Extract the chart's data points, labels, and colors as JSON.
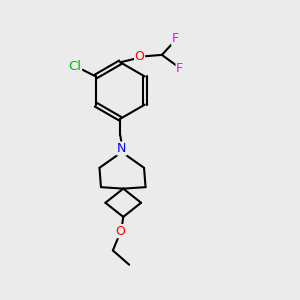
{
  "background_color": "#ebebeb",
  "atom_colors": {
    "Cl": "#00bb00",
    "O": "#ff0000",
    "F": "#ff00ff",
    "N": "#0000ff"
  },
  "bond_color": "#000000",
  "bond_width": 1.5,
  "font_size": 9
}
